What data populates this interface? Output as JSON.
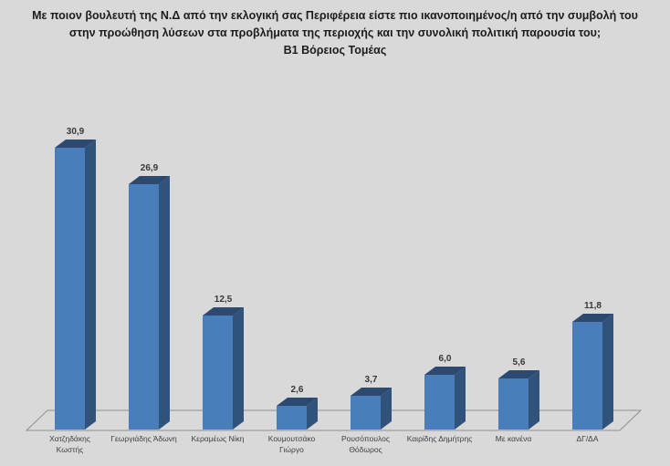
{
  "title": {
    "line1": "Με ποιον βουλευτή της Ν.Δ από την εκλογική σας Περιφέρεια είστε πιο ικανοποιημένος/η από την συμβολή του",
    "line2": "στην προώθηση λύσεων στα προβλήματα της περιοχής και την συνολική πολιτική παρουσία του;",
    "line3": "Β1 Βόρειος Τομέας"
  },
  "chart_data": {
    "type": "bar",
    "style": "3d-column",
    "title": "Με ποιον βουλευτή της Ν.Δ από την εκλογική σας Περιφέρεια είστε πιο ικανοποιημένος/η από την συμβολή του στην προώθηση λύσεων στα προβλήματα της περιοχής και την συνολική πολιτική παρουσία του; Β1 Βόρειος Τομέας",
    "categories": [
      "Χατζηδάκης Κωστής",
      "Γεωργιάδης Άδωνη",
      "Κεραμέως Νίκη",
      "Κουμουτσάκο Γιώργο",
      "Ρουσόπουλος Θόδωρος",
      "Καιρίδης Δημήτρης",
      "Με κανένα",
      "ΔΓ/ΔΑ"
    ],
    "category_lines": [
      [
        "Χατζηδάκης",
        "Κωστής"
      ],
      [
        "Γεωργιάδης Άδωνη"
      ],
      [
        "Κεραμέως Νίκη"
      ],
      [
        "Κουμουτσάκο",
        "Γιώργο"
      ],
      [
        "Ρουσόπουλος",
        "Θόδωρος"
      ],
      [
        "Καιρίδης Δημήτρης"
      ],
      [
        "Με κανένα"
      ],
      [
        "ΔΓ/ΔΑ"
      ]
    ],
    "values": [
      30.9,
      26.9,
      12.5,
      2.6,
      3.7,
      6.0,
      5.6,
      11.8
    ],
    "value_labels": [
      "30,9",
      "26,9",
      "12,5",
      "2,6",
      "3,7",
      "6,0",
      "5,6",
      "11,8"
    ],
    "xlabel": "",
    "ylabel": "",
    "ylim": [
      0,
      32
    ],
    "grid": "none",
    "legend": "none",
    "colors": {
      "bar_front": "#4a7ebb",
      "bar_side": "#31527b",
      "bar_top": "#2c4a70",
      "floor_line": "#8f8f8f",
      "background": "#d9d9d9",
      "value_label": "#383838",
      "category_label": "#3f3f3f"
    }
  }
}
